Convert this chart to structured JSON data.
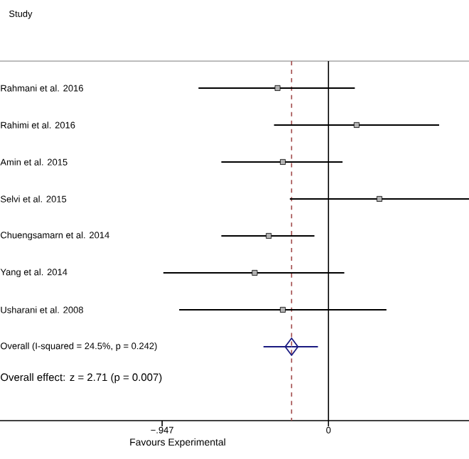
{
  "chart_data": {
    "type": "scatter",
    "orientation": "horizontal",
    "title": "Study",
    "xlabel": "Favours Experimental",
    "categories": [
      "Rahmani et al. 2016",
      "Rahimi et al. 2016",
      "Amin et al. 2015",
      "Selvi et al. 2015",
      "Chuengsamarn et al. 2014",
      "Yang et al. 2014",
      "Usharani et al. 2008",
      "Overall  (I-squared = 24.5%, p = 0.242)"
    ],
    "series": [
      {
        "color": "#000000",
        "marker": "square",
        "values": [
          -0.29,
          0.16,
          -0.26,
          0.29,
          -0.34,
          -0.42,
          -0.26,
          null
        ],
        "errors": [
          [
            -0.74,
            0.15
          ],
          [
            -0.31,
            0.63
          ],
          [
            -0.61,
            0.08
          ],
          [
            -0.22,
            0.8
          ],
          [
            -0.61,
            -0.08
          ],
          [
            -0.94,
            0.09
          ],
          [
            -0.85,
            0.33
          ],
          null
        ]
      },
      {
        "color": "#1a1a80",
        "marker": "diamond",
        "values": [
          null,
          null,
          null,
          null,
          null,
          null,
          null,
          -0.21
        ],
        "errors": [
          null,
          null,
          null,
          null,
          null,
          null,
          null,
          [
            -0.37,
            -0.06
          ]
        ]
      }
    ],
    "xlim": [
      -1.87,
      0.8
    ],
    "xticks": [
      {
        "value": -0.947,
        "label": "−.947"
      },
      {
        "value": 0,
        "label": "0"
      }
    ],
    "ref_lines": [
      {
        "axis": "x",
        "value": 0,
        "color": "#000000",
        "line_style": "solid"
      },
      {
        "axis": "x",
        "value": -0.21,
        "color": "#a04848",
        "line_style": "dashed"
      }
    ],
    "annotations": [
      "Overall effect: z = 2.71 (p = 0.007)"
    ],
    "grid": false
  }
}
